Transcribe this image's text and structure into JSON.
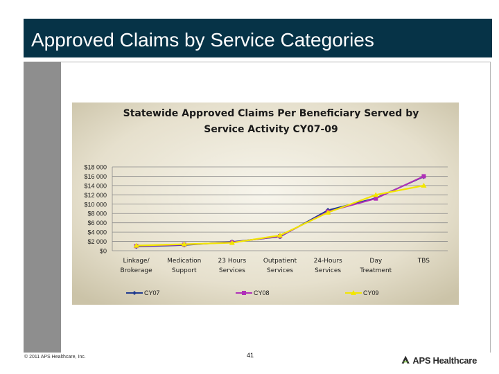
{
  "slide": {
    "title": "Approved Claims by Service Categories",
    "copyright": "© 2011 APS Healthcare, Inc.",
    "page_number": "41",
    "logo_text": "APS Healthcare"
  },
  "colors": {
    "title_bg": "#063347",
    "chart_bg_light": "#f7f5ec",
    "chart_bg_dark": "#cbc3a8",
    "cy07": "#1f3a8f",
    "cy08": "#b030b8",
    "cy09": "#f2e600"
  },
  "chart_data": {
    "type": "line",
    "title": "Statewide Approved Claims Per Beneficiary Served by Service Activity CY07-09",
    "title_lines": [
      "Statewide Approved Claims Per Beneficiary Served by",
      "Service Activity CY07-09"
    ],
    "xlabel": "",
    "ylabel": "",
    "ylim": [
      0,
      18000
    ],
    "y_ticks": [
      0,
      2000,
      4000,
      6000,
      8000,
      10000,
      12000,
      14000,
      16000,
      18000
    ],
    "y_tick_labels": [
      "$0",
      "$2 000",
      "$4 000",
      "$6 000",
      "$8 000",
      "$10 000",
      "$12 000",
      "$14 000",
      "$16 000",
      "$18 000"
    ],
    "categories": [
      [
        "Linkage/",
        "Brokerage"
      ],
      [
        "Medication",
        "Support"
      ],
      [
        "23 Hours",
        "Services"
      ],
      [
        "Outpatient",
        "Services"
      ],
      [
        "24-Hours",
        "Services"
      ],
      [
        "Day",
        "Treatment"
      ],
      [
        "TBS"
      ]
    ],
    "series": [
      {
        "name": "CY07",
        "values": [
          900,
          1200,
          1900,
          3000,
          8700,
          11300,
          15900
        ]
      },
      {
        "name": "CY08",
        "values": [
          1000,
          1300,
          1800,
          3100,
          8400,
          11200,
          16000
        ]
      },
      {
        "name": "CY09",
        "values": [
          1100,
          1400,
          1700,
          3300,
          8200,
          12000,
          14000
        ]
      }
    ],
    "legend_position": "bottom",
    "grid": true
  }
}
